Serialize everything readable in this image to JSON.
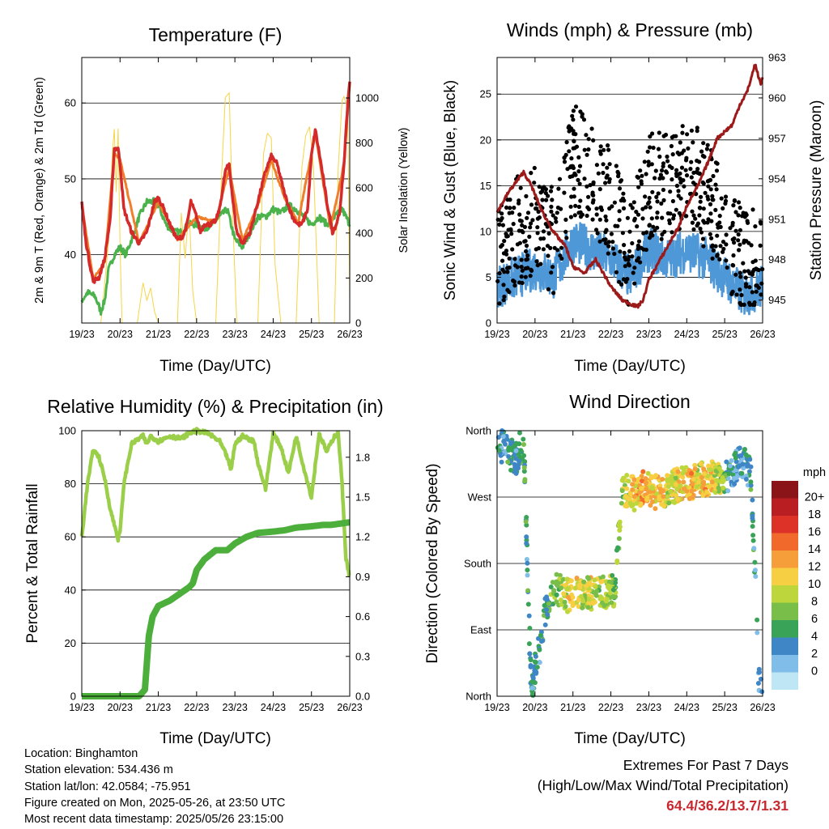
{
  "chart_data": [
    {
      "type": "line",
      "title": "Temperature (F)",
      "xlabel": "Time (Day/UTC)",
      "ylabel": "2m & 9m T (Red, Orange) & 2m Td (Green)",
      "y2label": "Solar Insolation (Yellow)",
      "x_ticks": [
        "19/23",
        "20/23",
        "21/23",
        "22/23",
        "23/23",
        "24/23",
        "25/23",
        "26/23"
      ],
      "y_ticks": [
        "40",
        "50",
        "60"
      ],
      "y2_ticks": [
        "0",
        "200",
        "400",
        "600",
        "800",
        "1000"
      ],
      "ylim": [
        31,
        66
      ],
      "y2lim": [
        0,
        1180
      ],
      "grid": "horizontal",
      "series": [
        {
          "name": "2m T",
          "color": "#d42a2a",
          "x": [
            0,
            0.1,
            0.2,
            0.3,
            0.45,
            0.6,
            0.75,
            0.85,
            0.95,
            1.0,
            1.1,
            1.3,
            1.5,
            1.7,
            1.9,
            2.0,
            2.15,
            2.3,
            2.5,
            2.65,
            2.75,
            2.85,
            3.0,
            3.1,
            3.2,
            3.35,
            3.5,
            3.6,
            3.75,
            3.85,
            3.95,
            4.05,
            4.2,
            4.4,
            4.6,
            4.8,
            4.95,
            5.1,
            5.3,
            5.5,
            5.65,
            5.75,
            5.9,
            6.0,
            6.1,
            6.25,
            6.4,
            6.55,
            6.65,
            6.75,
            6.85,
            6.95,
            7.0
          ],
          "values": [
            47,
            42,
            39,
            36.5,
            37,
            39.5,
            45,
            54,
            54,
            52,
            46,
            43,
            41.5,
            43,
            47,
            47.5,
            46,
            44,
            42,
            42.5,
            44,
            47,
            45,
            43,
            44,
            44,
            44.5,
            46,
            51,
            52,
            47,
            43,
            41.5,
            43,
            47,
            51,
            53,
            52,
            48,
            45,
            44,
            44,
            46,
            53,
            56.5,
            52,
            47,
            43,
            44,
            46,
            52,
            60,
            63
          ]
        },
        {
          "name": "9m T",
          "color": "#f07f2b",
          "x": [
            0,
            0.3,
            0.6,
            0.85,
            1.0,
            1.5,
            2.0,
            2.5,
            3.0,
            3.5,
            3.85,
            4.2,
            4.6,
            4.95,
            5.3,
            5.65,
            6.1,
            6.5,
            6.85,
            7.0
          ],
          "values": [
            46.5,
            36.8,
            39,
            53.5,
            52.5,
            41.5,
            47,
            42,
            45,
            44.3,
            51.5,
            41.8,
            46.5,
            52.5,
            47.5,
            44.2,
            56,
            43.5,
            52,
            62.5
          ]
        },
        {
          "name": "2m Td",
          "color": "#4cb24c",
          "x": [
            0,
            0.15,
            0.35,
            0.5,
            0.6,
            0.7,
            0.85,
            1.0,
            1.15,
            1.3,
            1.5,
            1.7,
            1.9,
            2.0,
            2.2,
            2.4,
            2.6,
            2.8,
            3.0,
            3.2,
            3.4,
            3.6,
            3.8,
            4.0,
            4.2,
            4.4,
            4.6,
            4.8,
            5.0,
            5.2,
            5.4,
            5.6,
            5.8,
            6.0,
            6.2,
            6.4,
            6.6,
            6.8,
            7.0
          ],
          "values": [
            34,
            35,
            34.5,
            32.5,
            34,
            38,
            40,
            41,
            40,
            42,
            45,
            47,
            47,
            46.5,
            44,
            43,
            43,
            44,
            44,
            43.5,
            44,
            45,
            46,
            42,
            41,
            43,
            45,
            45,
            46,
            45.5,
            46.5,
            46,
            45,
            44,
            45,
            44,
            45,
            46,
            44
          ]
        },
        {
          "name": "Solar Insolation",
          "axis": "right",
          "color": "#f5d547",
          "x": [
            0.5,
            0.7,
            0.8,
            0.85,
            0.9,
            0.95,
            1.0,
            1.05,
            1.15,
            1.3,
            1.45,
            1.6,
            1.7,
            1.8,
            1.9,
            2.0,
            2.1,
            2.3,
            2.5,
            2.6,
            2.7,
            2.8,
            2.9,
            3.0,
            3.1,
            3.3,
            3.5,
            3.65,
            3.75,
            3.85,
            3.95,
            4.05,
            4.2,
            4.5,
            4.6,
            4.75,
            4.85,
            4.95,
            5.05,
            5.2,
            5.5,
            5.6,
            5.75,
            5.85,
            5.95,
            6.05,
            6.2,
            6.5,
            6.6,
            6.7,
            6.8,
            6.85,
            6.95,
            7.0
          ],
          "values": [
            0,
            350,
            900,
            1060,
            600,
            950,
            400,
            0,
            0,
            0,
            0,
            190,
            100,
            190,
            60,
            0,
            0,
            0,
            0,
            550,
            280,
            520,
            180,
            0,
            0,
            0,
            0,
            700,
            980,
            1000,
            500,
            0,
            0,
            0,
            0,
            900,
            960,
            980,
            250,
            0,
            0,
            0,
            900,
            1000,
            950,
            780,
            0,
            0,
            0,
            900,
            1150,
            1180,
            1000,
            100
          ]
        }
      ]
    },
    {
      "type": "scatter",
      "title": "Winds (mph) & Pressure (mb)",
      "xlabel": "Time (Day/UTC)",
      "ylabel": "Sonic Wind & Gust (Blue, Black)",
      "y2label": "Station Pressure (Maroon)",
      "x_ticks": [
        "19/23",
        "20/23",
        "21/23",
        "22/23",
        "23/23",
        "24/23",
        "25/23",
        "26/23"
      ],
      "y_ticks": [
        "0",
        "5",
        "10",
        "15",
        "20",
        "25"
      ],
      "y2_ticks": [
        "945",
        "948",
        "951",
        "954",
        "957",
        "960",
        "963"
      ],
      "ylim": [
        0,
        29
      ],
      "y2lim": [
        943.3,
        963
      ],
      "grid": "horizontal",
      "series": [
        {
          "name": "Sonic Wind",
          "color": "#4f98d8",
          "x": [
            0,
            0.5,
            1.0,
            1.5,
            2.0,
            2.5,
            3.0,
            3.5,
            4.0,
            4.5,
            5.0,
            5.5,
            6.0,
            6.5,
            7.0
          ],
          "values": [
            4,
            5,
            6,
            5,
            9,
            8,
            7,
            5,
            8,
            7,
            8,
            7,
            5,
            3,
            4
          ]
        },
        {
          "name": "Gust",
          "color": "#000000",
          "x": [
            0,
            0.5,
            1.0,
            1.5,
            2.0,
            2.5,
            3.0,
            3.5,
            4.0,
            4.5,
            5.0,
            5.5,
            6.0,
            6.5,
            7.0
          ],
          "values": [
            7,
            10,
            11,
            9,
            18,
            16,
            13,
            7,
            15,
            15,
            17,
            14,
            11,
            6,
            8
          ]
        },
        {
          "name": "Station Pressure",
          "axis": "right",
          "color": "#9c1a1a",
          "x": [
            0,
            0.3,
            0.7,
            0.9,
            1.2,
            1.5,
            1.8,
            2.0,
            2.3,
            2.6,
            3.0,
            3.3,
            3.7,
            3.85,
            4.0,
            4.3,
            4.6,
            4.8,
            5.0,
            5.3,
            5.6,
            5.8,
            6.0,
            6.2,
            6.4,
            6.6,
            6.8,
            6.85,
            6.95,
            7.0
          ],
          "values": [
            951.5,
            953,
            954.5,
            953.5,
            951.5,
            950,
            949,
            947.5,
            947,
            948,
            946,
            945,
            944.5,
            945,
            946.5,
            948,
            949.5,
            950.5,
            952,
            953.5,
            955.5,
            957,
            957.5,
            958,
            959.5,
            960.5,
            962.5,
            962,
            961,
            961.5
          ]
        }
      ]
    },
    {
      "type": "line",
      "title": "Relative Humidity (%) & Precipitation (in)",
      "xlabel": "Time (Day/UTC)",
      "ylabel": "Percent & Total Rainfall",
      "x_ticks": [
        "19/23",
        "20/23",
        "21/23",
        "22/23",
        "23/23",
        "24/23",
        "25/23",
        "26/23"
      ],
      "y_ticks": [
        "0",
        "20",
        "40",
        "60",
        "80",
        "100"
      ],
      "y2_ticks": [
        "0.0",
        "0.3",
        "0.6",
        "0.9",
        "1.2",
        "1.5",
        "1.8"
      ],
      "ylim": [
        0,
        100
      ],
      "y2lim": [
        0,
        2.0
      ],
      "grid": "horizontal",
      "series": [
        {
          "name": "Relative Humidity",
          "color": "#9bcf4a",
          "x": [
            0,
            0.15,
            0.3,
            0.45,
            0.6,
            0.75,
            0.9,
            0.95,
            1.0,
            1.1,
            1.3,
            1.5,
            1.6,
            1.7,
            1.8,
            2.0,
            2.3,
            2.6,
            2.8,
            3.0,
            3.3,
            3.6,
            3.8,
            3.9,
            4.0,
            4.2,
            4.5,
            4.6,
            4.8,
            5.0,
            5.2,
            5.4,
            5.6,
            5.8,
            6.0,
            6.2,
            6.4,
            6.6,
            6.7,
            6.8,
            6.9,
            7.0
          ],
          "values": [
            60,
            80,
            93,
            90,
            82,
            70,
            62,
            59,
            62,
            80,
            95,
            97,
            98,
            95,
            98,
            96,
            98,
            97,
            99,
            100,
            99,
            96,
            90,
            85,
            95,
            98,
            96,
            88,
            78,
            99,
            94,
            84,
            98,
            86,
            75,
            99,
            92,
            98,
            99,
            80,
            52,
            45
          ]
        },
        {
          "name": "Total Precipitation",
          "axis": "right",
          "color": "#4caf3c",
          "x": [
            0,
            1.0,
            1.5,
            1.65,
            1.75,
            1.85,
            2.0,
            2.3,
            2.6,
            2.8,
            2.9,
            3.0,
            3.2,
            3.5,
            3.8,
            4.0,
            4.3,
            4.6,
            5.0,
            5.3,
            5.6,
            6.0,
            6.3,
            6.5,
            7.0
          ],
          "values": [
            0,
            0,
            0,
            0.05,
            0.45,
            0.6,
            0.68,
            0.72,
            0.78,
            0.82,
            0.85,
            0.95,
            1.03,
            1.1,
            1.1,
            1.15,
            1.2,
            1.23,
            1.24,
            1.25,
            1.27,
            1.28,
            1.29,
            1.29,
            1.31
          ]
        }
      ]
    },
    {
      "type": "scatter",
      "title": "Wind Direction",
      "xlabel": "Time (Day/UTC)",
      "ylabel": "Direction (Colored By Speed)",
      "x_ticks": [
        "19/23",
        "20/23",
        "21/23",
        "22/23",
        "23/23",
        "24/23",
        "25/23",
        "26/23"
      ],
      "y_ticks": [
        "North",
        "East",
        "South",
        "West",
        "North"
      ],
      "ylim": [
        0,
        360
      ],
      "grid": "horizontal",
      "colorbar": {
        "title": "mph",
        "labels": [
          "0",
          "2",
          "4",
          "6",
          "8",
          "10",
          "12",
          "14",
          "16",
          "18",
          "20+"
        ],
        "colors": [
          "#bfe6f5",
          "#80bde8",
          "#3f86c6",
          "#39a457",
          "#78be48",
          "#bcd63c",
          "#f6cf43",
          "#f59e3a",
          "#f26a2b",
          "#dd3227",
          "#b91e22",
          "#8b1419"
        ]
      },
      "series": [
        {
          "name": "Direction",
          "x": [
            0.1,
            0.3,
            0.5,
            0.7,
            0.9,
            1.1,
            1.3,
            1.5,
            1.7,
            1.9,
            2.1,
            2.3,
            2.5,
            2.7,
            2.9,
            3.1,
            3.3,
            3.5,
            3.7,
            3.9,
            4.1,
            4.3,
            4.5,
            4.7,
            4.9,
            5.1,
            5.3,
            5.5,
            5.7,
            5.9,
            6.1,
            6.3,
            6.5,
            6.7,
            6.9
          ],
          "values": [
            340,
            330,
            320,
            350,
            10,
            60,
            120,
            150,
            140,
            135,
            138,
            140,
            140,
            138,
            142,
            145,
            275,
            280,
            270,
            290,
            275,
            280,
            280,
            285,
            290,
            285,
            300,
            290,
            300,
            295,
            300,
            310,
            320,
            300,
            20
          ],
          "speeds": [
            3,
            4,
            3,
            5,
            3,
            4,
            5,
            7,
            8,
            11,
            10,
            9,
            10,
            8,
            9,
            7,
            8,
            10,
            12,
            13,
            11,
            12,
            9,
            10,
            11,
            13,
            9,
            12,
            10,
            8,
            4,
            2,
            3,
            5,
            2
          ]
        }
      ]
    }
  ],
  "info": {
    "location": "Location: Binghamton",
    "elevation": "Station elevation: 534.436 m",
    "latlon": "Station lat/lon: 42.0584; -75.951",
    "created": "Figure created on Mon, 2025-05-26, at 23:50 UTC",
    "latest": "Most recent data timestamp: 2025/05/26 23:15:00"
  },
  "extremes": {
    "title": "Extremes For Past 7 Days",
    "subtitle": "(High/Low/Max Wind/Total Precipitation)",
    "values": "64.4/36.2/13.7/1.31"
  }
}
